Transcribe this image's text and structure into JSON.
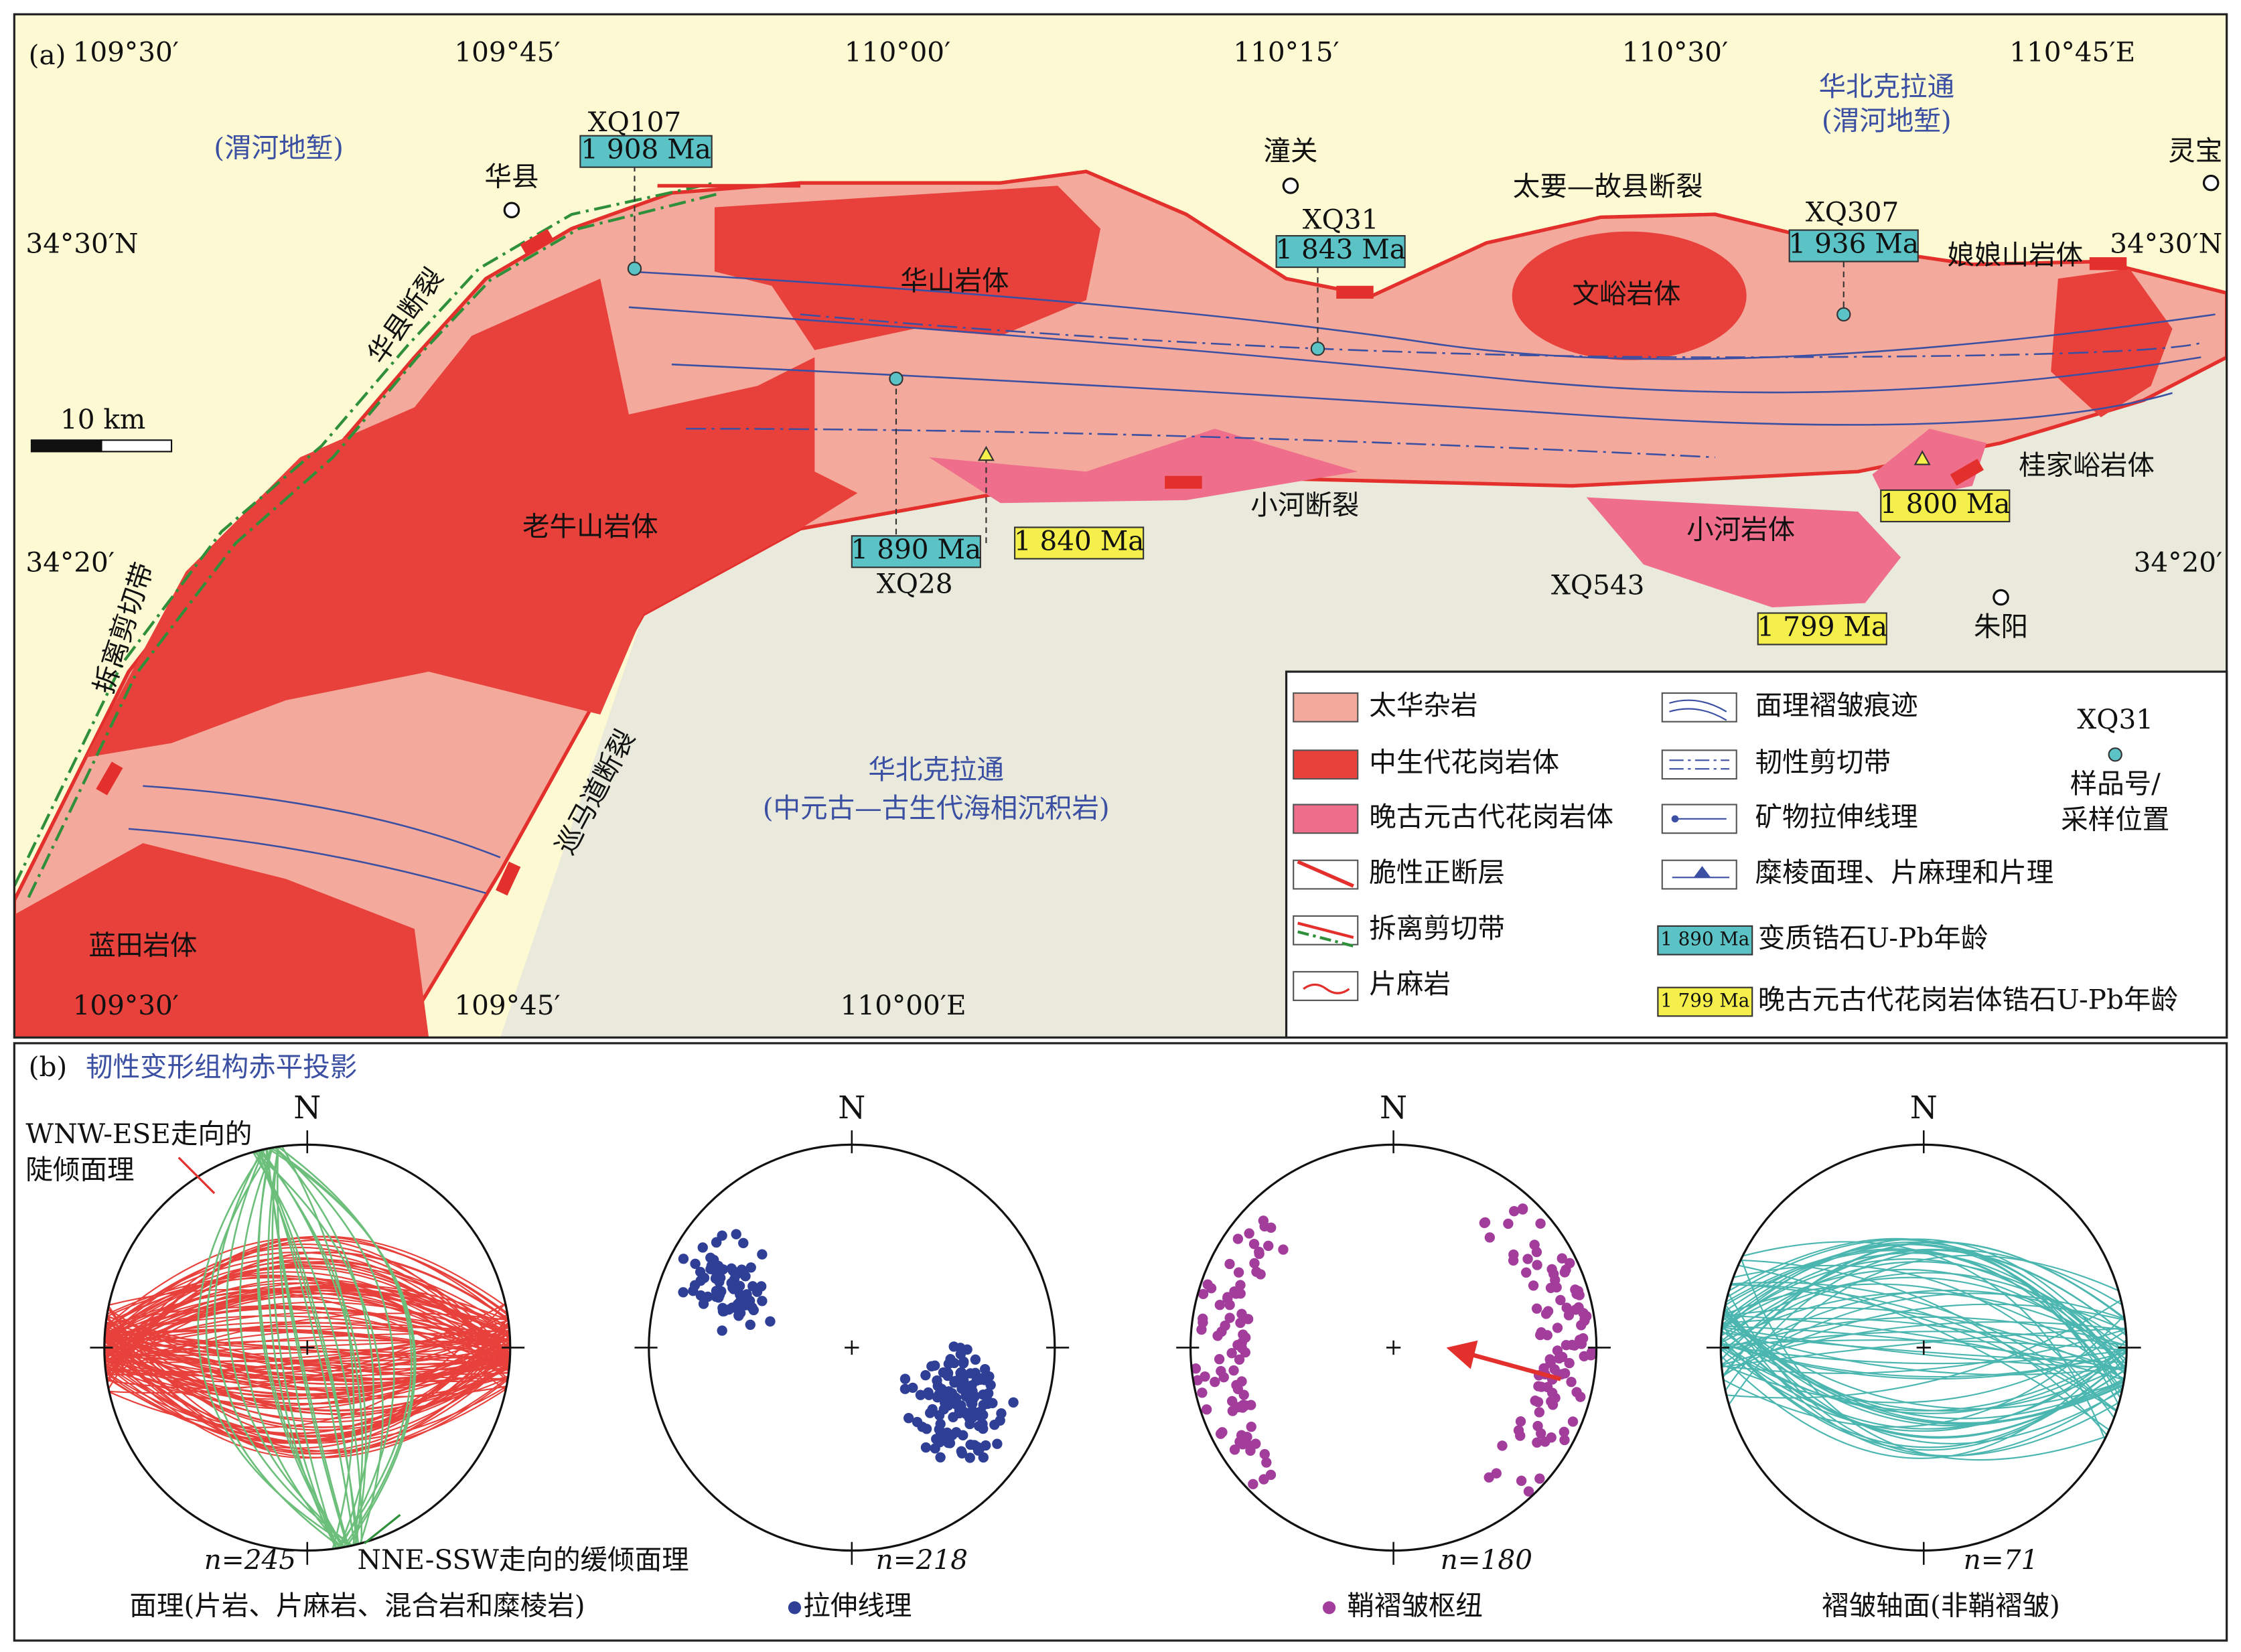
{
  "panel_a": {
    "label": "(a)",
    "lon_top": [
      "109°30′",
      "109°45′",
      "110°00′",
      "110°15′",
      "110°30′",
      "110°45′E"
    ],
    "lon_bottom": [
      "109°30′",
      "109°45′",
      "110°00′E"
    ],
    "lat_left": [
      "34°30′N",
      "34°20′"
    ],
    "lat_right": [
      "34°30′N",
      "34°20′"
    ],
    "regions": [
      "(渭河地堑)",
      "华北克拉通",
      "(渭河地堑)",
      "华北克拉通",
      "(中元古—古生代海相沉积岩)"
    ],
    "towns": [
      "华县",
      "潼关",
      "灵宝",
      "朱阳"
    ],
    "faults": [
      "太要—故县断裂",
      "小河断裂",
      "华县断裂",
      "巡马道断裂",
      "拆离剪切带"
    ],
    "rock_bodies": [
      "华山岩体",
      "文峪岩体",
      "娘娘山岩体",
      "老牛山岩体",
      "桂家峪岩体",
      "小河岩体",
      "蓝田岩体"
    ],
    "samples": [
      {
        "name": "XQ107",
        "age": "1 908 Ma"
      },
      {
        "name": "XQ31",
        "age": "1 843 Ma"
      },
      {
        "name": "XQ307",
        "age": "1 936 Ma"
      },
      {
        "name": "XQ28",
        "age": "1 890 Ma"
      },
      {
        "name": "XQ543"
      }
    ],
    "granite_ages": [
      "1 840 Ma",
      "1 800 Ma",
      "1 799 Ma"
    ],
    "scale": "10 km",
    "legend": {
      "items": [
        "太华杂岩",
        "中生代花岗岩体",
        "晚古元古代花岗岩体",
        "脆性正断层",
        "拆离剪切带",
        "片麻岩",
        "面理褶皱痕迹",
        "韧性剪切带",
        "矿物拉伸线理",
        "糜棱面理、片麻理和片理"
      ],
      "zircon": {
        "box": "1 890 Ma",
        "text": "变质锆石U-Pb年龄"
      },
      "granite": {
        "box": "1 799 Ma",
        "text": "晚古元古代花岗岩体锆石U-Pb年龄"
      },
      "sample": {
        "name": "XQ31",
        "text": [
          "样品号/",
          "采样位置"
        ]
      }
    }
  },
  "panel_b": {
    "label": "(b)",
    "title": "韧性变形组构赤平投影",
    "annotations": [
      "WNW-ESE走向的",
      "陡倾面理",
      "NNE-SSW走向的缓倾面理"
    ],
    "nets": [
      {
        "north": "N",
        "n": "n=245",
        "caption": "面理(片岩、片麻岩、混合岩和糜棱岩)"
      },
      {
        "north": "N",
        "n": "n=218",
        "caption": "拉伸线理"
      },
      {
        "north": "N",
        "n": "n=180",
        "caption": "鞘褶皱枢纽"
      },
      {
        "north": "N",
        "n": "n=71",
        "caption": "褶皱轴面(非鞘褶皱)"
      }
    ]
  }
}
